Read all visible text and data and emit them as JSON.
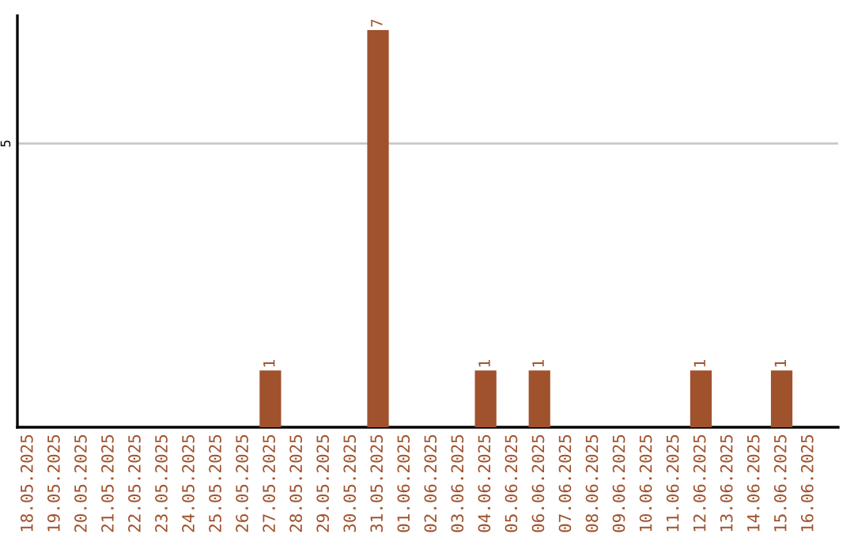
{
  "chart_data": {
    "type": "bar",
    "categories": [
      "18.05.2025",
      "19.05.2025",
      "20.05.2025",
      "21.05.2025",
      "22.05.2025",
      "23.05.2025",
      "24.05.2025",
      "25.05.2025",
      "26.05.2025",
      "27.05.2025",
      "28.05.2025",
      "29.05.2025",
      "30.05.2025",
      "31.05.2025",
      "01.06.2025",
      "02.06.2025",
      "03.06.2025",
      "04.06.2025",
      "05.06.2025",
      "06.06.2025",
      "07.06.2025",
      "08.06.2025",
      "09.06.2025",
      "10.06.2025",
      "11.06.2025",
      "12.06.2025",
      "13.06.2025",
      "14.06.2025",
      "15.06.2025",
      "16.06.2025"
    ],
    "values": [
      0,
      0,
      0,
      0,
      0,
      0,
      0,
      0,
      0,
      1,
      0,
      0,
      0,
      7,
      0,
      0,
      0,
      1,
      0,
      1,
      0,
      0,
      0,
      0,
      0,
      1,
      0,
      0,
      1,
      0
    ],
    "value_labels": [
      null,
      null,
      null,
      null,
      null,
      null,
      null,
      null,
      null,
      "1",
      null,
      null,
      null,
      "7",
      null,
      null,
      null,
      "1",
      null,
      "1",
      null,
      null,
      null,
      null,
      null,
      "1",
      null,
      null,
      "1",
      null
    ],
    "color": "#a0522d",
    "ylim": [
      0,
      7.25
    ],
    "yticks": [
      5
    ],
    "grid": "y",
    "legend": false
  }
}
